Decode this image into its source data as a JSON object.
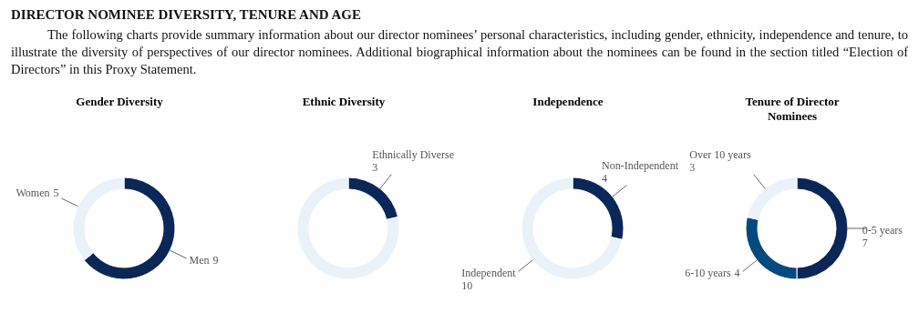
{
  "chart_data": [
    {
      "type": "other",
      "title": "DIRECTOR NOMINEE DIVERSITY, TENURE AND AGE",
      "annotations": [
        "The following charts provide summary information about our director nominees’ personal characteristics, including gender, ethnicity, independence and tenure, to illustrate the diversity of perspectives of our director nominees. Additional biographical information about the nominees can be found in the section titled “Election of Directors” in this Proxy Statement."
      ]
    },
    {
      "type": "donut",
      "title": "Gender Diversity",
      "categories": [
        "Men",
        "Women"
      ],
      "values": [
        9,
        5
      ],
      "colors": [
        "#0b2757",
        "#eaf1f8"
      ],
      "data_labels": true
    },
    {
      "type": "donut",
      "title": "Ethnic Diversity",
      "categories": [
        "Ethnically Diverse",
        null
      ],
      "values": [
        3,
        11
      ],
      "colors": [
        "#0b2757",
        "#eaf1f8"
      ],
      "value_labels": [
        "3",
        null
      ]
    },
    {
      "type": "donut",
      "title": "Independence",
      "categories": [
        "Non-Independent",
        "Independent"
      ],
      "values": [
        4,
        10
      ],
      "colors": [
        "#0b2757",
        "#eaf1f8"
      ],
      "data_labels": true
    },
    {
      "type": "donut",
      "title": "Tenure of Director Nominees",
      "categories": [
        "0-5 years",
        "6-10 years",
        "Over 10 years"
      ],
      "values": [
        7,
        4,
        3
      ],
      "colors": [
        "#0b2757",
        "#044a7e",
        "#eaf1f8"
      ],
      "data_labels": true
    }
  ]
}
